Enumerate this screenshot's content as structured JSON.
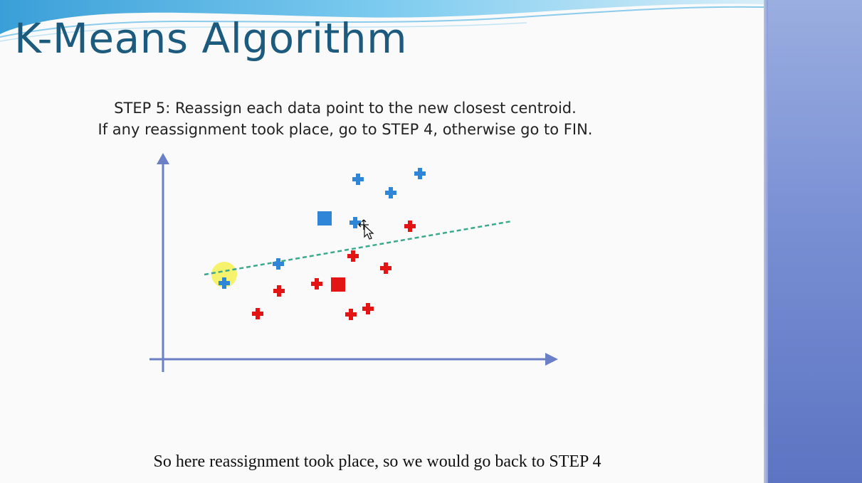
{
  "slide": {
    "title": "K-Means Algorithm",
    "step_line_1": "STEP 5: Reassign each data point to the new closest centroid.",
    "step_line_2": "If any reassignment took place, go to STEP 4, otherwise go to FIN.",
    "caption": "So here reassignment took place, so we would go back to STEP 4"
  },
  "colors": {
    "title": "#1c5b7d",
    "axis": "#6a7fc6",
    "cluster_blue": "#2f86d6",
    "cluster_red": "#e21414",
    "boundary": "#3aaa8a",
    "highlight": "#f5ef3c",
    "side_panel": "#7a90d4"
  },
  "icons": {
    "cursor": "move-arrow-cursor-icon"
  },
  "chart_data": {
    "type": "scatter",
    "title": "",
    "xlabel": "",
    "ylabel": "",
    "xlim": [
      0,
      550
    ],
    "ylim": [
      0,
      290
    ],
    "grid": false,
    "legend": "none",
    "series": [
      {
        "marker": "plus",
        "color": "blue",
        "x": [
          274,
          320,
          361,
          270,
          162,
          86
        ],
        "y": [
          253,
          234,
          261,
          192,
          134,
          107
        ]
      },
      {
        "marker": "plus",
        "color": "red",
        "x": [
          347,
          267,
          313,
          216,
          163,
          133,
          264,
          288
        ],
        "y": [
          187,
          145,
          128,
          106,
          96,
          64,
          63,
          71
        ]
      }
    ],
    "centroids": [
      {
        "marker": "square",
        "color": "blue",
        "x": 227,
        "y": 198
      },
      {
        "marker": "square",
        "color": "red",
        "x": 246,
        "y": 105
      }
    ],
    "boundary_line": {
      "style": "dashed",
      "x": [
        58,
        490
      ],
      "y": [
        119,
        194
      ]
    },
    "highlight": {
      "shape": "circle",
      "x": 86,
      "y": 119
    }
  }
}
